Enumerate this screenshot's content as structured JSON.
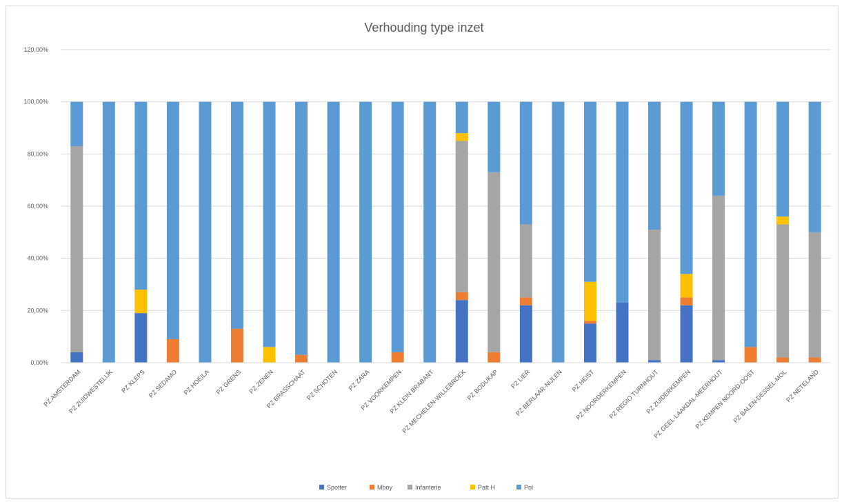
{
  "chart_data": {
    "type": "bar",
    "stacked": true,
    "title": "Verhouding type inzet",
    "xlabel": "",
    "ylabel": "",
    "ylim": [
      0,
      120
    ],
    "y_ticks": [
      "0,00%",
      "20,00%",
      "40,00%",
      "60,00%",
      "80,00%",
      "100,00%",
      "120,00%"
    ],
    "grid": true,
    "legend_position": "bottom",
    "categories": [
      "PZ AMSTERDAM",
      "PZ ZUIDWESTELIJK",
      "PZ KLEPS",
      "PZ SEDAMO",
      "PZ HOEILA",
      "PZ GRENS",
      "PZ ZENEN",
      "PZ BRASSCHAAT",
      "PZ SCHOTEN",
      "PZ ZARA",
      "PZ VOORKEMPEN",
      "PZ KLEIN BRABANT",
      "PZ MECHELEN-WILLEBROEK",
      "PZ BODUKAP",
      "PZ LIER",
      "PZ BERLAAR-NIJLEN",
      "PZ HEIST",
      "PZ NOORDERKEMPEN",
      "PZ REGIO TURNHOUT",
      "PZ ZUIDERKEMPEN",
      "PZ GEEL-LAAKDAL-MEERHOUT",
      "PZ KEMPEN NOORD-OOST",
      "PZ BALEN-DESSEL-MOL",
      "PZ NETELAND"
    ],
    "series": [
      {
        "name": "Spotter",
        "color": "#4472c4",
        "values": [
          4,
          0,
          19,
          0,
          0,
          0,
          0,
          0,
          0,
          0,
          0,
          0,
          24,
          0,
          22,
          0,
          15,
          23,
          1,
          22,
          1,
          0,
          0,
          0
        ]
      },
      {
        "name": "Mboy",
        "color": "#ed7d31",
        "values": [
          0,
          0,
          0,
          9,
          0,
          13,
          0,
          3,
          0,
          0,
          4,
          0,
          3,
          4,
          3,
          0,
          1,
          0,
          0,
          3,
          0,
          6,
          2,
          2
        ]
      },
      {
        "name": "Infanterie",
        "color": "#a5a5a5",
        "values": [
          79,
          0,
          0,
          0,
          0,
          0,
          0,
          0,
          0,
          0,
          0,
          0,
          58,
          69,
          28,
          0,
          0,
          0,
          50,
          0,
          63,
          0,
          51,
          48
        ]
      },
      {
        "name": "Patt H",
        "color": "#ffc000",
        "values": [
          0,
          0,
          9,
          0,
          0,
          0,
          6,
          0,
          0,
          0,
          0,
          0,
          3,
          0,
          0,
          0,
          15,
          0,
          0,
          9,
          0,
          0,
          3,
          0
        ]
      },
      {
        "name": "Pol",
        "color": "#5b9bd5",
        "values": [
          17,
          100,
          72,
          91,
          100,
          87,
          94,
          97,
          100,
          100,
          96,
          100,
          12,
          27,
          47,
          100,
          69,
          77,
          49,
          66,
          36,
          94,
          44,
          50
        ]
      }
    ]
  }
}
